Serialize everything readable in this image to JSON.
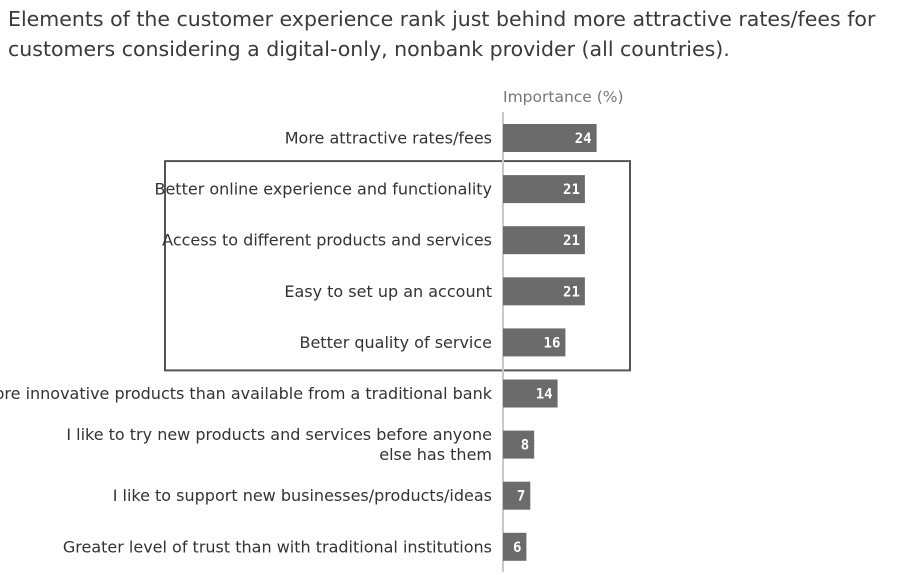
{
  "title": "Elements of the customer experience rank just behind more attractive rates/fees for customers considering a digital-only, nonbank provider (all countries).",
  "chart_data": {
    "type": "bar",
    "orientation": "horizontal",
    "value_header": "Importance (%)",
    "categories": [
      [
        "More attractive rates/fees"
      ],
      [
        "Better online experience and functionality"
      ],
      [
        "Access to different products and services"
      ],
      [
        "Easy to set up an account"
      ],
      [
        "Better quality of service"
      ],
      [
        "More innovative products than available from a traditional bank"
      ],
      [
        "I like to try new products and services before anyone",
        "else has them"
      ],
      [
        "I like to support new businesses/products/ideas"
      ],
      [
        "Greater level of trust than with traditional institutions"
      ]
    ],
    "values": [
      24,
      21,
      21,
      21,
      16,
      14,
      8,
      7,
      6
    ],
    "highlighted_categories": [
      1,
      2,
      3,
      4
    ],
    "colors": {
      "bar": "#6b6b6b",
      "axis": "#c8c8c8",
      "box": "#555555",
      "value_text": "#ffffff"
    }
  }
}
